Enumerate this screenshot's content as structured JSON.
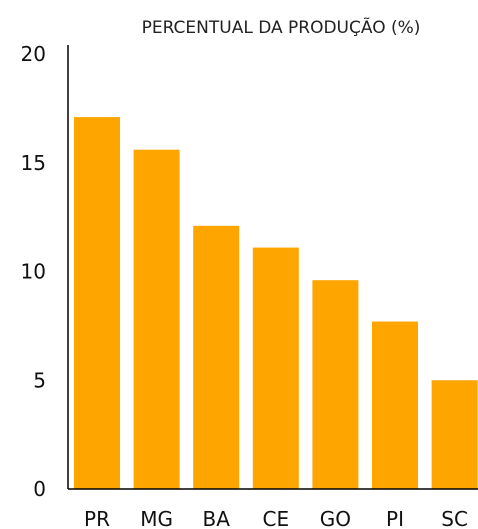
{
  "chart_data": {
    "type": "bar",
    "title": "PERCENTUAL DA PRODUÇÃO (%)",
    "xlabel": "",
    "ylabel": "",
    "categories": [
      "PR",
      "MG",
      "BA",
      "CE",
      "GO",
      "PI",
      "SC"
    ],
    "values": [
      17.1,
      15.6,
      12.1,
      11.1,
      9.6,
      7.7,
      5.0
    ],
    "ylim": [
      0,
      20
    ],
    "yticks": [
      "0",
      "5",
      "10",
      "15",
      "20"
    ],
    "grid": false,
    "legend": "none",
    "bar_color": "#FFA500"
  }
}
